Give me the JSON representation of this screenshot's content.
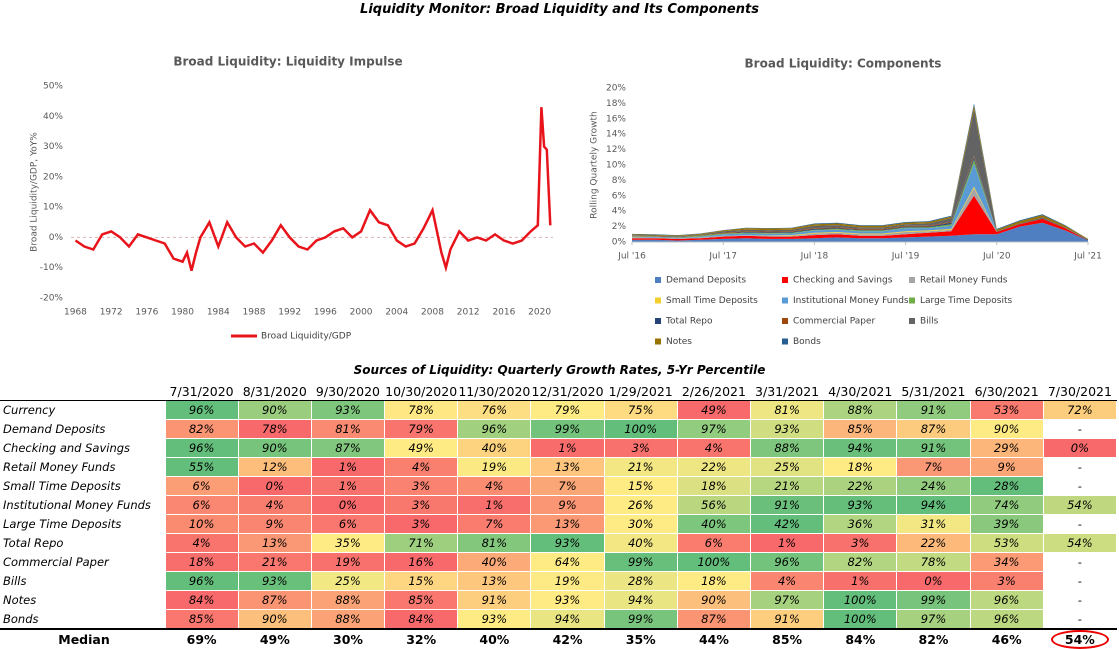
{
  "title": "Liquidity Monitor: Broad Liquidity and Its Components",
  "chart_data": [
    {
      "type": "line",
      "title": "Broad Liquidity: Liquidity Impulse",
      "ylabel": "Broad Liquidity/GDP, YoY%",
      "x": [
        1968,
        1969,
        1970,
        1971,
        1972,
        1973,
        1974,
        1975,
        1976,
        1977,
        1978,
        1979,
        1980,
        1980.5,
        1981,
        1981.5,
        1982,
        1983,
        1984,
        1985,
        1986,
        1987,
        1988,
        1989,
        1990,
        1991,
        1992,
        1993,
        1994,
        1995,
        1996,
        1997,
        1998,
        1999,
        2000,
        2001,
        2002,
        2003,
        2004,
        2005,
        2006,
        2007,
        2008,
        2009,
        2009.5,
        2010,
        2011,
        2012,
        2013,
        2014,
        2015,
        2016,
        2017,
        2018,
        2019,
        2019.8,
        2020.2,
        2020.5,
        2020.8,
        2021.2
      ],
      "series": [
        {
          "name": "Broad Liquidity/GDP",
          "color": "#e8141b",
          "values": [
            -1,
            -3,
            -4,
            1,
            2,
            0,
            -3,
            1,
            0,
            -1,
            -2,
            -7,
            -8,
            -5,
            -11,
            -5,
            0,
            5,
            -3,
            5,
            0,
            -3,
            -2,
            -5,
            -1,
            4,
            0,
            -3,
            -4,
            -1,
            0,
            2,
            3,
            0,
            2,
            9,
            5,
            4,
            -1,
            -3,
            -2,
            3,
            9,
            -5,
            -10,
            -4,
            2,
            -1,
            0,
            -1,
            1,
            -1,
            -2,
            -1,
            2,
            4,
            43,
            30,
            29,
            4
          ]
        }
      ],
      "xlim": [
        1967.5,
        2021.5
      ],
      "xticks": [
        1968,
        1972,
        1976,
        1980,
        1984,
        1988,
        1992,
        1996,
        2000,
        2004,
        2008,
        2012,
        2016,
        2020
      ],
      "ylim": [
        -20,
        50
      ],
      "yticks": [
        {
          "value": -20,
          "label": "-20%"
        },
        {
          "value": -10,
          "label": "-10%"
        },
        {
          "value": 0,
          "label": "0%"
        },
        {
          "value": 10,
          "label": "10%"
        },
        {
          "value": 20,
          "label": "20%"
        },
        {
          "value": 30,
          "label": "30%"
        },
        {
          "value": 40,
          "label": "40%"
        },
        {
          "value": 50,
          "label": "50%"
        }
      ],
      "zero_line": true,
      "legend": "bottom"
    },
    {
      "type": "stacked_area",
      "title": "Broad Liquidity: Components",
      "ylabel": "Rolling Quartely Growth",
      "x": [
        2016.5,
        2016.75,
        2017,
        2017.25,
        2017.5,
        2017.75,
        2018,
        2018.25,
        2018.5,
        2018.75,
        2019,
        2019.25,
        2019.5,
        2019.75,
        2020,
        2020.25,
        2020.5,
        2020.75,
        2021,
        2021.25,
        2021.5
      ],
      "series": [
        {
          "name": "Demand Deposits",
          "color": "#4f7fc0",
          "values": [
            0.3,
            0.3,
            0.2,
            0.3,
            0.4,
            0.5,
            0.4,
            0.4,
            0.5,
            0.6,
            0.5,
            0.5,
            0.6,
            0.7,
            0.8,
            1.0,
            1.0,
            2.0,
            2.5,
            1.5,
            0.2
          ]
        },
        {
          "name": "Checking and Savings",
          "color": "#ff0000",
          "values": [
            0.2,
            0.2,
            0.2,
            0.2,
            0.3,
            0.3,
            0.3,
            0.3,
            0.4,
            0.4,
            0.3,
            0.3,
            0.4,
            0.5,
            0.6,
            5.0,
            0.3,
            0.3,
            0.5,
            0.3,
            0
          ]
        },
        {
          "name": "Retail Money Funds",
          "color": "#a5a5a5",
          "values": [
            0.05,
            0.05,
            0.05,
            0.1,
            0.1,
            0.1,
            0.1,
            0.1,
            0.2,
            0.2,
            0.2,
            0.2,
            0.3,
            0.2,
            0.2,
            1.0,
            0,
            0,
            0,
            0,
            0
          ]
        },
        {
          "name": "Small Time Deposits",
          "color": "#f2cf2c",
          "values": [
            0.05,
            0,
            0,
            0,
            0,
            0,
            0.05,
            0.1,
            0.1,
            0.1,
            0.1,
            0.1,
            0.1,
            0.1,
            0.1,
            0.2,
            0,
            0,
            0,
            0,
            0
          ]
        },
        {
          "name": "Institutional Money Funds",
          "color": "#5b9bd5",
          "values": [
            0.1,
            0.1,
            0.1,
            0.1,
            0.2,
            0.2,
            0.2,
            0.2,
            0.3,
            0.3,
            0.3,
            0.3,
            0.4,
            0.3,
            0.4,
            3.0,
            0,
            0,
            0,
            0,
            0
          ]
        },
        {
          "name": "Large Time Deposits",
          "color": "#70ad47",
          "values": [
            0.05,
            0.05,
            0.05,
            0.1,
            0.1,
            0.1,
            0.1,
            0.1,
            0.1,
            0.1,
            0.1,
            0.1,
            0.1,
            0.1,
            0.2,
            0.5,
            0,
            0,
            0,
            0,
            0
          ]
        },
        {
          "name": "Total Repo",
          "color": "#264478",
          "values": [
            0,
            0,
            0,
            0,
            0,
            0.1,
            0.1,
            0.1,
            0.1,
            0.1,
            0.1,
            0.1,
            0.1,
            0.1,
            0.2,
            0.3,
            0,
            0,
            0,
            0,
            0.1
          ]
        },
        {
          "name": "Commercial Paper",
          "color": "#9e480e",
          "values": [
            0.05,
            0.05,
            0.05,
            0.05,
            0.1,
            0.1,
            0.1,
            0.1,
            0.1,
            0.1,
            0.1,
            0.1,
            0.1,
            0.1,
            0.1,
            0.2,
            0,
            0,
            0,
            0,
            0
          ]
        },
        {
          "name": "Bills",
          "color": "#636363",
          "values": [
            0.1,
            0.1,
            0.1,
            0.1,
            0.2,
            0.2,
            0.2,
            0.2,
            0.3,
            0.3,
            0.2,
            0.2,
            0.2,
            0.3,
            0.5,
            6.0,
            0.1,
            0.1,
            0.2,
            0.1,
            0
          ]
        },
        {
          "name": "Notes",
          "color": "#997300",
          "values": [
            0.1,
            0.1,
            0.1,
            0.1,
            0.1,
            0.2,
            0.2,
            0.2,
            0.2,
            0.2,
            0.2,
            0.2,
            0.2,
            0.2,
            0.2,
            0.5,
            0.2,
            0.3,
            0.3,
            0.2,
            0.1
          ]
        },
        {
          "name": "Bonds",
          "color": "#255e91",
          "values": [
            0.05,
            0.05,
            0.05,
            0.05,
            0.05,
            0.05,
            0.05,
            0.05,
            0.1,
            0.1,
            0.1,
            0.1,
            0.1,
            0.1,
            0.1,
            0.3,
            0.1,
            0.1,
            0.1,
            0.1,
            0
          ]
        }
      ],
      "xlim": [
        2016.5,
        2021.5
      ],
      "xticks": [
        {
          "value": 2016.5,
          "label": "Jul '16"
        },
        {
          "value": 2017.5,
          "label": "Jul '17"
        },
        {
          "value": 2018.5,
          "label": "Jul '18"
        },
        {
          "value": 2019.5,
          "label": "Jul '19"
        },
        {
          "value": 2020.5,
          "label": "Jul '20"
        },
        {
          "value": 2021.5,
          "label": "Jul '21"
        }
      ],
      "ylim": [
        0,
        20
      ],
      "yticks": [
        {
          "value": 0,
          "label": "0%"
        },
        {
          "value": 2,
          "label": "2%"
        },
        {
          "value": 4,
          "label": "4%"
        },
        {
          "value": 6,
          "label": "6%"
        },
        {
          "value": 8,
          "label": "8%"
        },
        {
          "value": 10,
          "label": "10%"
        },
        {
          "value": 12,
          "label": "12%"
        },
        {
          "value": 14,
          "label": "14%"
        },
        {
          "value": 16,
          "label": "16%"
        },
        {
          "value": 18,
          "label": "18%"
        },
        {
          "value": 20,
          "label": "20%"
        }
      ],
      "legend": "bottom"
    }
  ],
  "table": {
    "title": "Sources of Liquidity: Quarterly Growth Rates, 5-Yr Percentile",
    "columns": [
      "7/31/2020",
      "8/31/2020",
      "9/30/2020",
      "10/30/2020",
      "11/30/2020",
      "12/31/2020",
      "1/29/2021",
      "2/26/2021",
      "3/31/2021",
      "4/30/2021",
      "5/31/2021",
      "6/30/2021",
      "7/30/2021"
    ],
    "rows": [
      {
        "label": "Currency",
        "cells": [
          "96%",
          "90%",
          "93%",
          "78%",
          "76%",
          "79%",
          "75%",
          "49%",
          "81%",
          "88%",
          "91%",
          "53%",
          "72%"
        ]
      },
      {
        "label": "Demand Deposits",
        "cells": [
          "82%",
          "78%",
          "81%",
          "79%",
          "96%",
          "99%",
          "100%",
          "97%",
          "93%",
          "85%",
          "87%",
          "90%",
          "-"
        ]
      },
      {
        "label": "Checking and Savings",
        "cells": [
          "96%",
          "90%",
          "87%",
          "49%",
          "40%",
          "1%",
          "3%",
          "4%",
          "88%",
          "94%",
          "91%",
          "29%",
          "0%"
        ]
      },
      {
        "label": "Retail Money Funds",
        "cells": [
          "55%",
          "12%",
          "1%",
          "4%",
          "19%",
          "13%",
          "21%",
          "22%",
          "25%",
          "18%",
          "7%",
          "9%",
          "-"
        ]
      },
      {
        "label": "Small Time Deposits",
        "cells": [
          "6%",
          "0%",
          "1%",
          "3%",
          "4%",
          "7%",
          "15%",
          "18%",
          "21%",
          "22%",
          "24%",
          "28%",
          "-"
        ]
      },
      {
        "label": "Institutional Money Funds",
        "cells": [
          "6%",
          "4%",
          "0%",
          "3%",
          "1%",
          "9%",
          "26%",
          "56%",
          "91%",
          "93%",
          "94%",
          "74%",
          "54%"
        ]
      },
      {
        "label": "Large Time Deposits",
        "cells": [
          "10%",
          "9%",
          "6%",
          "3%",
          "7%",
          "13%",
          "30%",
          "40%",
          "42%",
          "36%",
          "31%",
          "39%",
          "-"
        ]
      },
      {
        "label": "Total Repo",
        "cells": [
          "4%",
          "13%",
          "35%",
          "71%",
          "81%",
          "93%",
          "40%",
          "6%",
          "1%",
          "3%",
          "22%",
          "53%",
          "54%"
        ]
      },
      {
        "label": "Commercial Paper",
        "cells": [
          "18%",
          "21%",
          "19%",
          "16%",
          "40%",
          "64%",
          "99%",
          "100%",
          "96%",
          "82%",
          "78%",
          "34%",
          "-"
        ]
      },
      {
        "label": "Bills",
        "cells": [
          "96%",
          "93%",
          "25%",
          "15%",
          "13%",
          "19%",
          "28%",
          "18%",
          "4%",
          "1%",
          "0%",
          "3%",
          "-"
        ]
      },
      {
        "label": "Notes",
        "cells": [
          "84%",
          "87%",
          "88%",
          "85%",
          "91%",
          "93%",
          "94%",
          "90%",
          "97%",
          "100%",
          "99%",
          "96%",
          "-"
        ]
      },
      {
        "label": "Bonds",
        "cells": [
          "85%",
          "90%",
          "88%",
          "84%",
          "93%",
          "94%",
          "99%",
          "87%",
          "91%",
          "100%",
          "97%",
          "96%",
          "-"
        ]
      }
    ],
    "median": {
      "label": "Median",
      "cells": [
        "69%",
        "49%",
        "30%",
        "32%",
        "40%",
        "42%",
        "35%",
        "44%",
        "85%",
        "84%",
        "82%",
        "46%",
        "54%"
      ]
    }
  }
}
